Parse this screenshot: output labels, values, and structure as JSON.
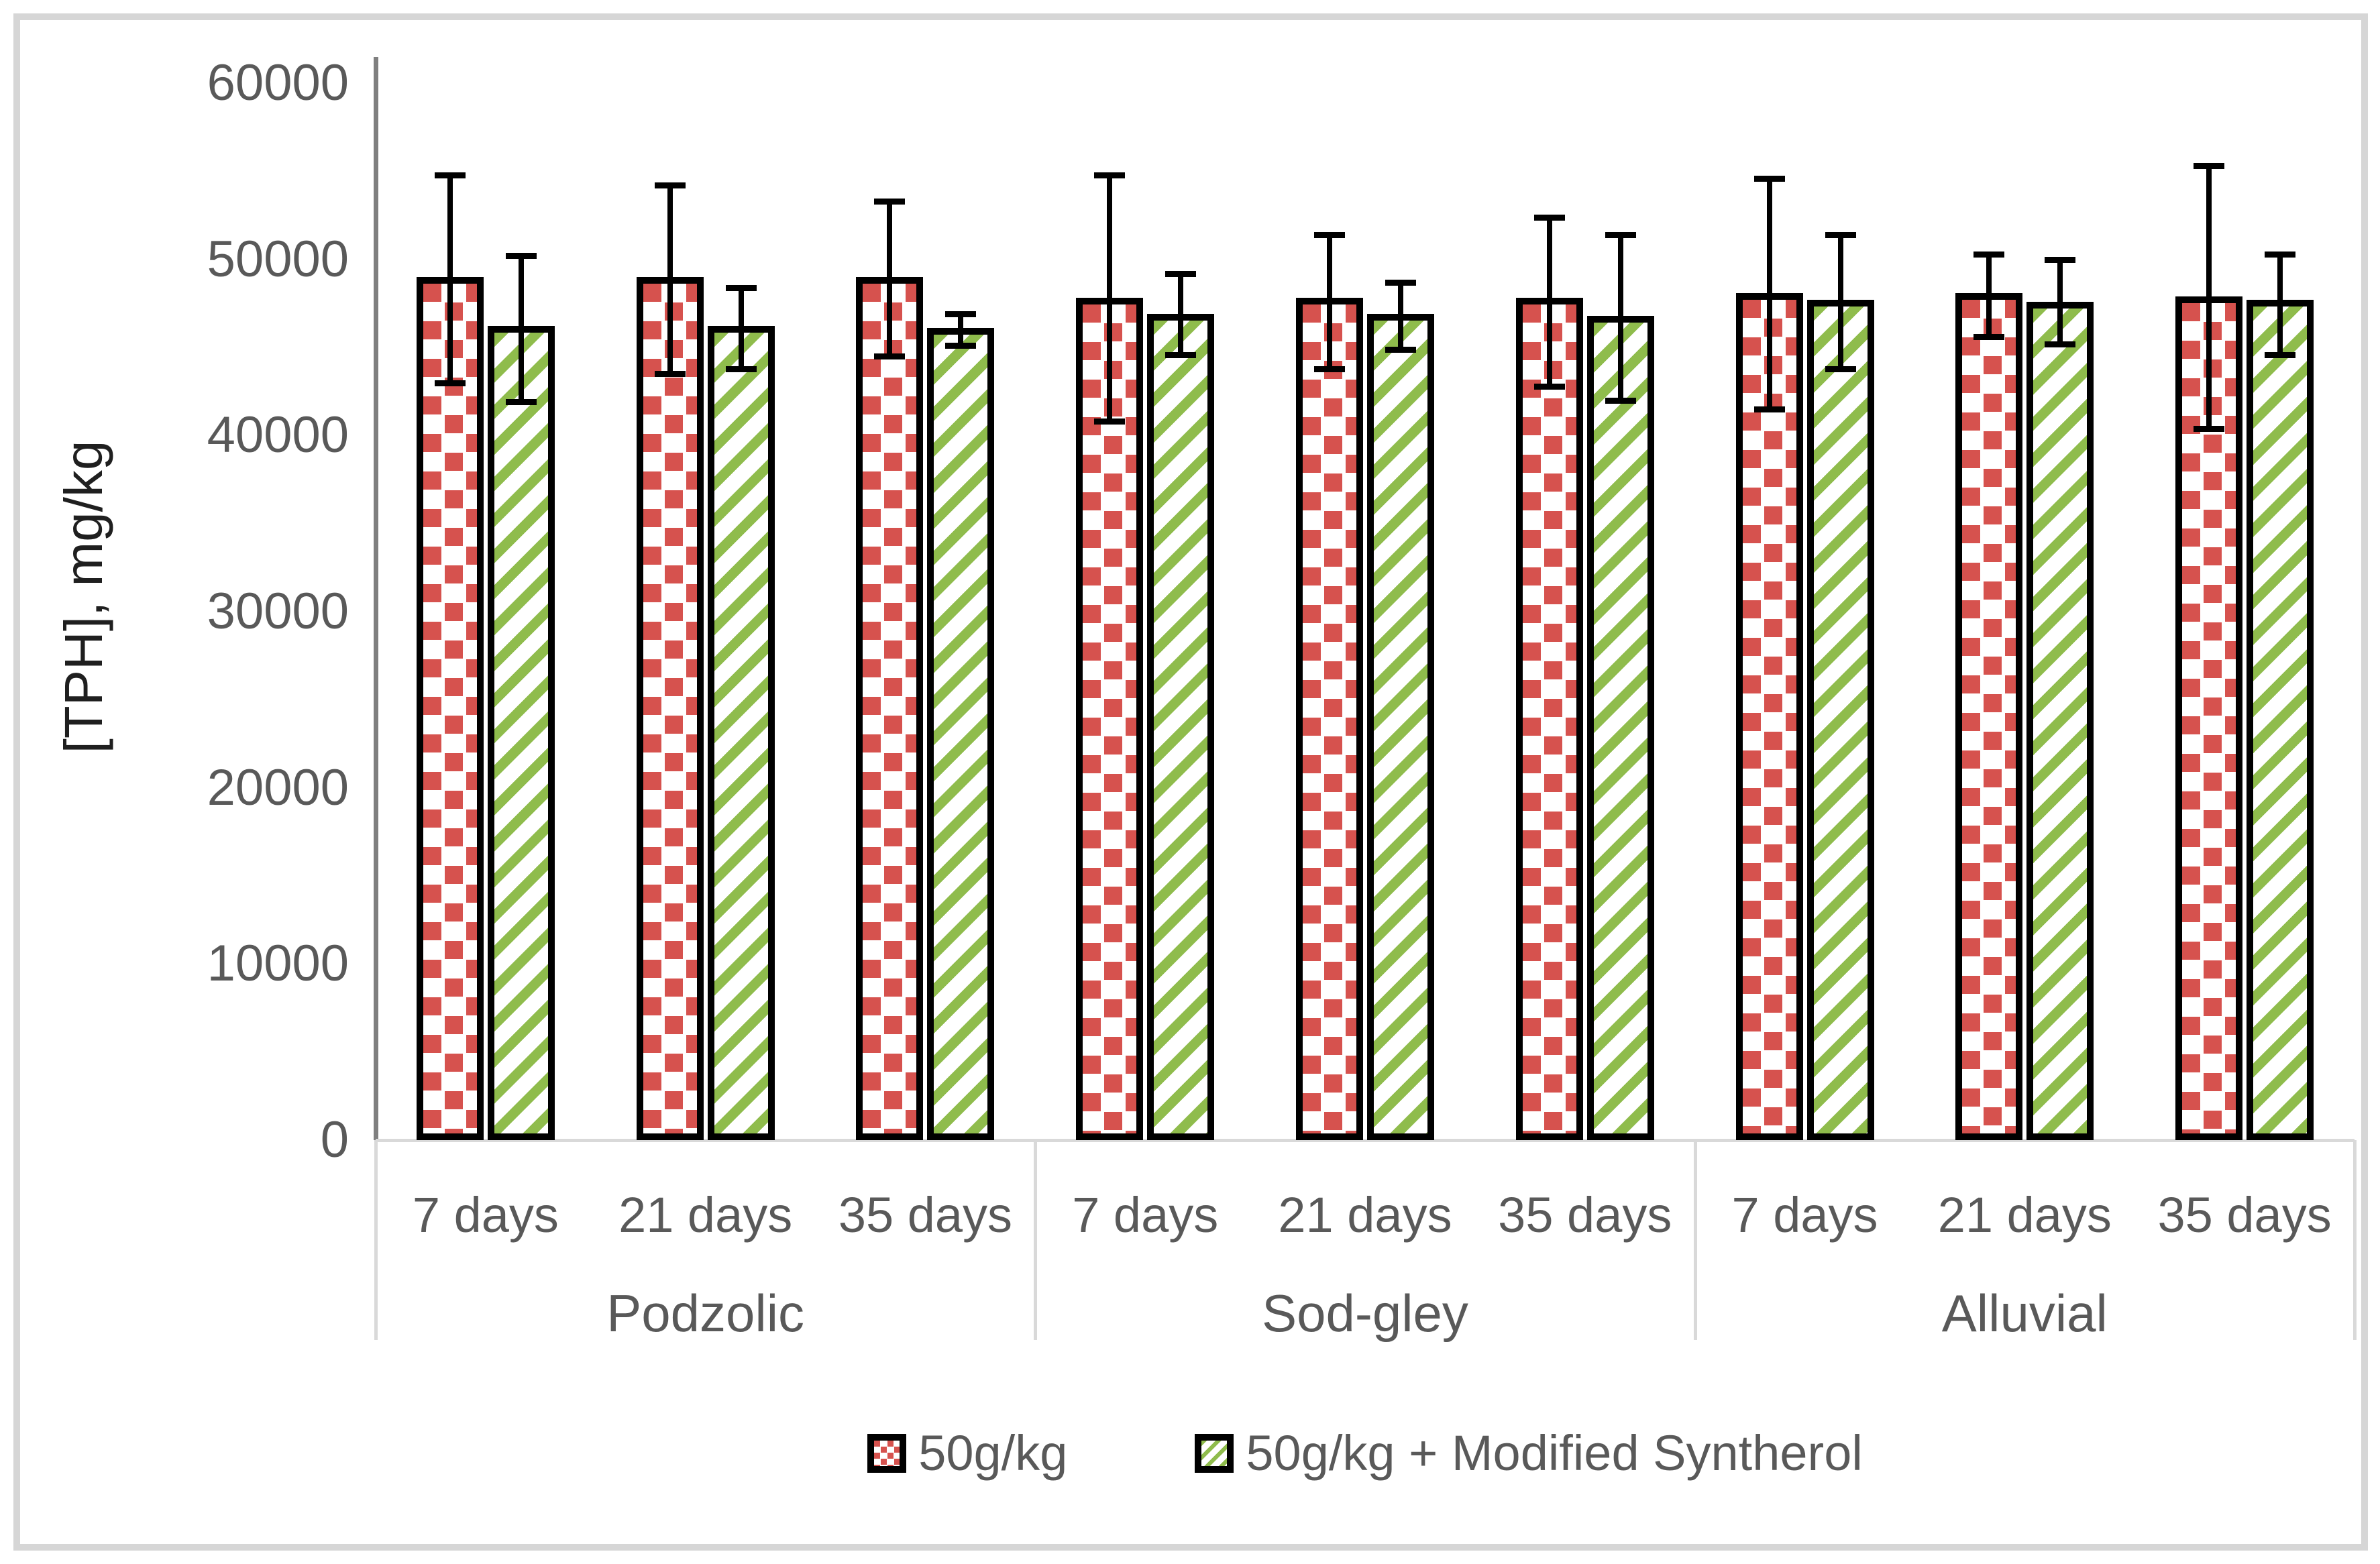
{
  "chart_data": {
    "type": "bar",
    "title": "",
    "ylabel": "[TPH], mg/kg",
    "ylim": [
      0,
      60000
    ],
    "yticks": [
      "0",
      "10000",
      "20000",
      "30000",
      "40000",
      "50000",
      "60000"
    ],
    "grid": false,
    "legend_position": "bottom",
    "groups": [
      "Podzolic",
      "Sod-gley",
      "Alluvial"
    ],
    "categories": [
      "7 days",
      "21 days",
      "35 days"
    ],
    "series": [
      {
        "name": "50g/kg",
        "pattern": "red-dotted-squares",
        "color": "#d6524e",
        "values": [
          49000,
          49000,
          49000,
          47800,
          47800,
          47800,
          48100,
          48100,
          47900
        ],
        "error_top": [
          54800,
          54200,
          53300,
          54800,
          51400,
          52400,
          54600,
          50300,
          55300
        ],
        "error_bottom": [
          43000,
          43500,
          44500,
          40800,
          43800,
          42800,
          41500,
          45600,
          40400
        ]
      },
      {
        "name": "50g/kg + Modified Syntherol",
        "pattern": "green-diagonal-stripes",
        "color": "#8fbc4c",
        "values": [
          46200,
          46200,
          46100,
          46900,
          46900,
          46800,
          47700,
          47600,
          47700
        ],
        "error_top": [
          50200,
          48400,
          46900,
          49200,
          48700,
          51400,
          51400,
          50000,
          50300
        ],
        "error_bottom": [
          41900,
          43800,
          45100,
          44600,
          44900,
          42000,
          43800,
          45200,
          44600
        ]
      }
    ]
  },
  "colors": {
    "series_red": "#d6524e",
    "series_green": "#8fbc4c",
    "axis_line": "#7f7f7f",
    "separator": "#d9d9d9",
    "text": "#595959",
    "bar_border": "#000000",
    "figure_border": "#d6d6d6"
  }
}
